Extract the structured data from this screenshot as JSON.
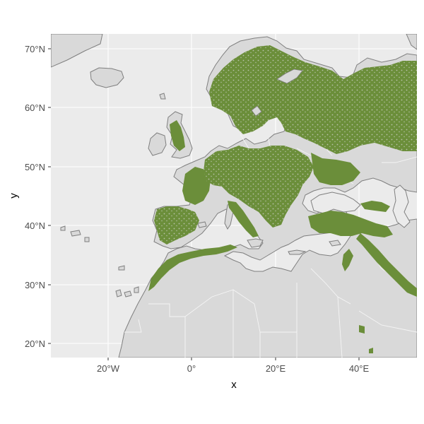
{
  "map": {
    "x_ticks": [
      "20°W",
      "0°",
      "20°E",
      "40°E"
    ],
    "y_ticks": [
      "70°N",
      "60°N",
      "50°N",
      "40°N",
      "30°N",
      "20°N"
    ],
    "x_label": "x",
    "y_label": "y",
    "lon_range": [
      -34,
      54
    ],
    "lat_range": [
      17.5,
      72.5
    ],
    "colors": {
      "panel": "#ebebeb",
      "grid": "#ffffff",
      "land": "#d9d9d9",
      "coast": "#7f7f7f",
      "forest": "#6b8e3a"
    }
  }
}
